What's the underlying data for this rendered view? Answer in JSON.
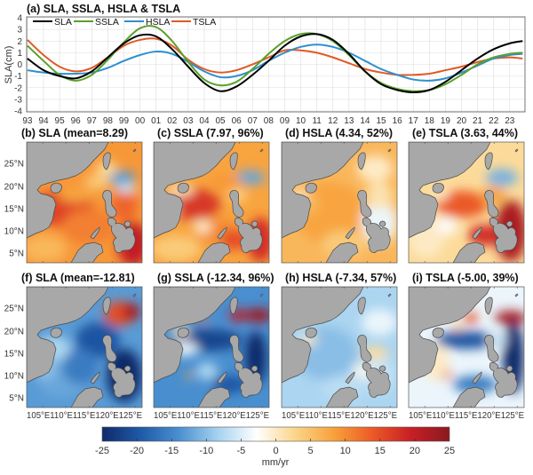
{
  "chart_data": [
    {
      "type": "line",
      "panel": "a",
      "title": "(a) SLA, SSLA, HSLA & TSLA",
      "xlabel": "",
      "ylabel": "SLA(cm)",
      "ylim": [
        -4,
        4
      ],
      "yticks": [
        "4",
        "3",
        "2",
        "1",
        "0",
        "-1",
        "-2",
        "-3",
        "-4"
      ],
      "xticks": [
        "93",
        "94",
        "95",
        "96",
        "97",
        "98",
        "99",
        "00",
        "01",
        "02",
        "03",
        "04",
        "05",
        "06",
        "07",
        "08",
        "09",
        "10",
        "11",
        "12",
        "13",
        "14",
        "15",
        "16",
        "17",
        "18",
        "19",
        "20",
        "21",
        "22",
        "23"
      ],
      "grid": true,
      "legend_position": "top-left, horizontal",
      "x": [
        1993,
        1994,
        1995,
        1996,
        1997,
        1998,
        1999,
        2000,
        2001,
        2002,
        2003,
        2004,
        2005,
        2006,
        2007,
        2008,
        2009,
        2010,
        2011,
        2012,
        2013,
        2014,
        2015,
        2016,
        2017,
        2018,
        2019,
        2020,
        2021,
        2022,
        2023,
        2023.8
      ],
      "series": [
        {
          "name": "SLA",
          "color": "#000000",
          "values": [
            0.5,
            -0.5,
            -1.0,
            -1.2,
            -0.6,
            0.6,
            1.8,
            2.5,
            2.4,
            1.3,
            -0.2,
            -1.6,
            -2.3,
            -1.9,
            -0.9,
            0.3,
            1.6,
            2.4,
            2.6,
            2.1,
            0.9,
            -0.6,
            -1.7,
            -2.2,
            -2.4,
            -2.2,
            -1.5,
            -0.5,
            0.5,
            1.3,
            1.8,
            2.0
          ]
        },
        {
          "name": "SSLA",
          "color": "#5aa02c",
          "values": [
            1.6,
            0.3,
            -0.9,
            -1.4,
            -0.9,
            0.4,
            1.9,
            3.1,
            3.2,
            2.0,
            0.2,
            -1.3,
            -1.8,
            -1.5,
            -0.4,
            0.9,
            2.0,
            2.6,
            2.6,
            2.0,
            0.8,
            -0.6,
            -1.6,
            -2.1,
            -2.3,
            -2.2,
            -1.7,
            -0.9,
            0.0,
            0.6,
            0.9,
            1.0
          ]
        },
        {
          "name": "HSLA",
          "color": "#2e8fcf",
          "values": [
            -0.5,
            -0.7,
            -0.8,
            -0.8,
            -0.7,
            -0.3,
            0.3,
            0.8,
            1.1,
            0.9,
            0.2,
            -0.6,
            -1.1,
            -1.0,
            -0.5,
            0.3,
            1.0,
            1.5,
            1.7,
            1.5,
            1.0,
            0.3,
            -0.4,
            -0.9,
            -1.3,
            -1.4,
            -1.2,
            -0.7,
            -0.1,
            0.5,
            0.8,
            0.9
          ]
        },
        {
          "name": "TSLA",
          "color": "#e05a24",
          "values": [
            2.1,
            0.8,
            -0.2,
            -0.6,
            -0.3,
            0.6,
            1.6,
            2.1,
            2.2,
            1.6,
            0.4,
            -0.4,
            -0.7,
            -0.5,
            0.0,
            0.6,
            1.2,
            1.2,
            1.0,
            0.6,
            0.1,
            -0.4,
            -0.7,
            -0.9,
            -0.9,
            -0.8,
            -0.5,
            -0.2,
            0.2,
            0.5,
            0.6,
            0.5
          ]
        }
      ]
    },
    {
      "type": "heatmap",
      "description": "Map panels of sea level anomaly trend over the South China Sea region",
      "lat_ticks": [
        "25°N",
        "20°N",
        "15°N",
        "10°N",
        "5°N"
      ],
      "lon_ticks": [
        "105°E",
        "110°E",
        "115°E",
        "120°E",
        "125°E"
      ],
      "panels": [
        {
          "id": "b",
          "title": "(b) SLA (mean=8.29)",
          "variable": "SLA",
          "mean": 8.29,
          "pattern": "warm"
        },
        {
          "id": "c",
          "title": "(c) SSLA (7.97, 96%)",
          "variable": "SSLA",
          "mean": 7.97,
          "percent": 96,
          "pattern": "warm-strong"
        },
        {
          "id": "d",
          "title": "(d) HSLA (4.34, 52%)",
          "variable": "HSLA",
          "mean": 4.34,
          "percent": 52,
          "pattern": "warm-light"
        },
        {
          "id": "e",
          "title": "(e) TSLA (3.63, 44%)",
          "variable": "TSLA",
          "mean": 3.63,
          "percent": 44,
          "pattern": "warm-east"
        },
        {
          "id": "f",
          "title": "(f) SLA (mean=-12.81)",
          "variable": "SLA",
          "mean": -12.81,
          "pattern": "cool"
        },
        {
          "id": "g",
          "title": "(g) SSLA (-12.34, 96%)",
          "variable": "SSLA",
          "mean": -12.34,
          "percent": 96,
          "pattern": "cool-strong"
        },
        {
          "id": "h",
          "title": "(h) HSLA (-7.34, 57%)",
          "variable": "HSLA",
          "mean": -7.34,
          "percent": 57,
          "pattern": "cool-light"
        },
        {
          "id": "i",
          "title": "(i) TSLA (-5.00, 39%)",
          "variable": "TSLA",
          "mean": -5.0,
          "percent": 39,
          "pattern": "cool-east"
        }
      ]
    },
    {
      "type": "colorbar",
      "label": "mm/yr",
      "range": [
        -25,
        25
      ],
      "ticks": [
        "-25",
        "-20",
        "-15",
        "-10",
        "-5",
        "0",
        "5",
        "10",
        "15",
        "20",
        "25"
      ],
      "colormap": [
        "#0f2a6b",
        "#1f5aa8",
        "#4a90d0",
        "#a6d2ef",
        "#ffffff",
        "#fbd58a",
        "#f8a13a",
        "#ec5a26",
        "#c81e26",
        "#8a1a1f"
      ]
    }
  ],
  "colors": {
    "land": "#a8a8a8",
    "coast": "#4a4a4a",
    "frame": "#555555",
    "grid": "#dcdcdc"
  }
}
